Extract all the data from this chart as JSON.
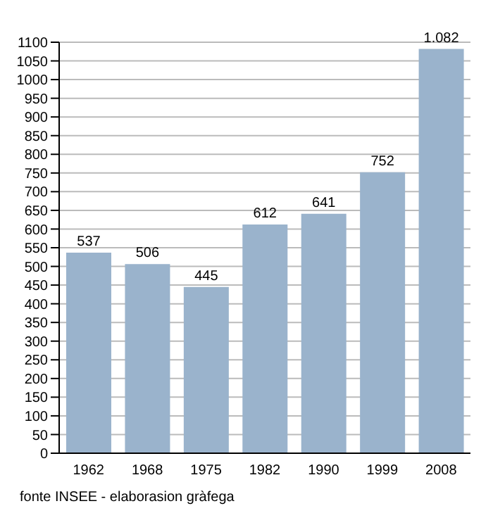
{
  "chart_data": {
    "type": "bar",
    "categories": [
      "1962",
      "1968",
      "1975",
      "1982",
      "1990",
      "1999",
      "2008"
    ],
    "values": [
      537,
      506,
      445,
      612,
      641,
      752,
      1082
    ],
    "value_labels": [
      "537",
      "506",
      "445",
      "612",
      "641",
      "752",
      "1.082"
    ],
    "color": "#9ab3cc",
    "ylim": [
      0,
      1100
    ],
    "yticks": [
      0,
      50,
      100,
      150,
      200,
      250,
      300,
      350,
      400,
      450,
      500,
      550,
      600,
      650,
      700,
      750,
      800,
      850,
      900,
      950,
      1000,
      1050,
      1100
    ],
    "grid": "y",
    "annotations": [
      "fonte INSEE - elaborasion gràfega"
    ]
  }
}
